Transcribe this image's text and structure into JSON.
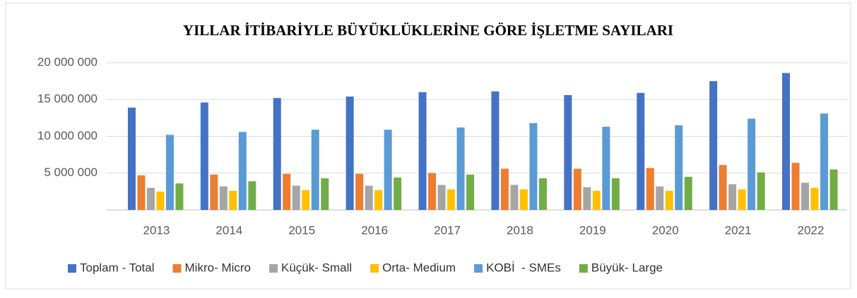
{
  "chart_data": {
    "type": "bar",
    "title": "YILLAR İTİBARİYLE BÜYÜKLÜKLERİNE GÖRE İŞLETME SAYILARI",
    "categories": [
      "2013",
      "2014",
      "2015",
      "2016",
      "2017",
      "2018",
      "2019",
      "2020",
      "2021",
      "2022"
    ],
    "series": [
      {
        "name": "Toplam - Total",
        "color": "#4472c4",
        "values": [
          13900000,
          14600000,
          15200000,
          15400000,
          16000000,
          16100000,
          15600000,
          15900000,
          17500000,
          18600000
        ]
      },
      {
        "name": "Mikro- Micro",
        "color": "#ed7d31",
        "values": [
          4700000,
          4800000,
          4900000,
          4900000,
          5000000,
          5600000,
          5600000,
          5700000,
          6100000,
          6400000
        ]
      },
      {
        "name": "Küçük- Small",
        "color": "#a5a5a5",
        "values": [
          3000000,
          3200000,
          3300000,
          3300000,
          3400000,
          3400000,
          3100000,
          3200000,
          3500000,
          3700000
        ]
      },
      {
        "name": "Orta- Medium",
        "color": "#ffc000",
        "values": [
          2500000,
          2600000,
          2700000,
          2700000,
          2800000,
          2800000,
          2600000,
          2600000,
          2800000,
          3000000
        ]
      },
      {
        "name": "KOBİ  - SMEs",
        "color": "#5b9bd5",
        "values": [
          10200000,
          10600000,
          10900000,
          10900000,
          11200000,
          11800000,
          11300000,
          11500000,
          12400000,
          13100000
        ]
      },
      {
        "name": "Büyük- Large",
        "color": "#70ad47",
        "values": [
          3600000,
          3900000,
          4300000,
          4400000,
          4800000,
          4300000,
          4300000,
          4500000,
          5100000,
          5500000
        ]
      }
    ],
    "ylim": [
      0,
      20000000
    ],
    "yticks": [
      {
        "value": 5000000,
        "label": "5 000 000"
      },
      {
        "value": 10000000,
        "label": "10 000 000"
      },
      {
        "value": 15000000,
        "label": "15 000 000"
      },
      {
        "value": 20000000,
        "label": "20 000 000"
      }
    ],
    "grid": true,
    "legend": "bottom"
  }
}
